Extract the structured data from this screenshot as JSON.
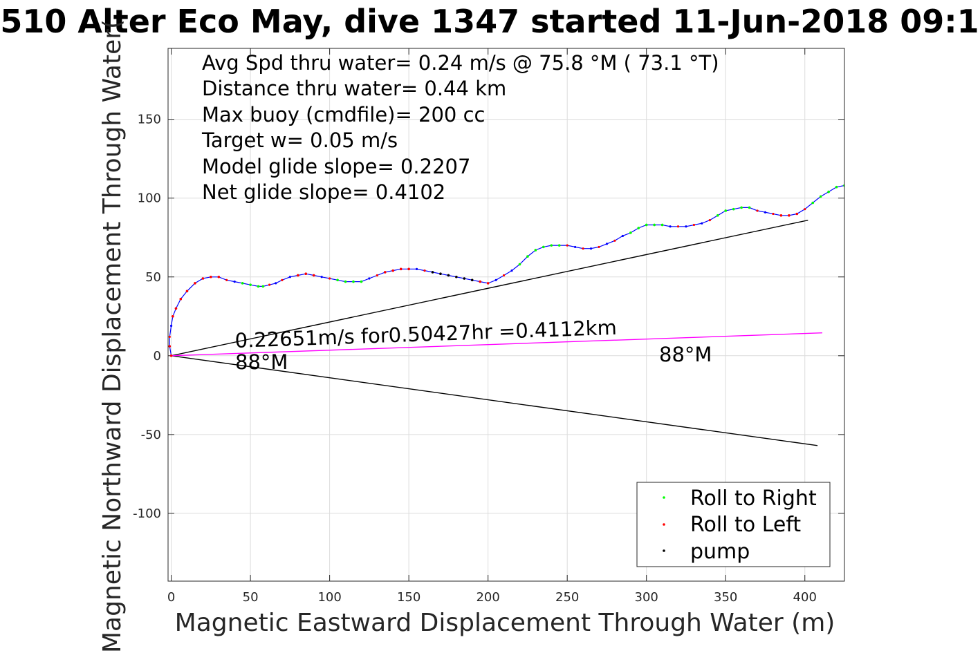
{
  "chart_data": {
    "type": "line",
    "title": "510 Alter Eco May, dive 1347 started 11-Jun-2018 09:1",
    "xlabel": "Magnetic Eastward Displacement Through Water (m)",
    "ylabel": "Magnetic Northward Displacement Through Water(",
    "xlim": [
      -2,
      425
    ],
    "ylim": [
      -143,
      195
    ],
    "grid": true,
    "xticks": [
      0,
      50,
      100,
      150,
      200,
      250,
      300,
      350,
      400
    ],
    "xtick_labels": [
      "0",
      "50",
      "100",
      "150",
      "200",
      "250",
      "300",
      "350",
      "400"
    ],
    "yticks": [
      -100,
      -50,
      0,
      50,
      100,
      150
    ],
    "ytick_labels": [
      "-100",
      "-50",
      "0",
      "50",
      "100",
      "150"
    ],
    "track": {
      "color": "#0000ff",
      "x": [
        0,
        -1,
        -1,
        0,
        1,
        3,
        6,
        10,
        15,
        20,
        25,
        30,
        35,
        40,
        45,
        50,
        55,
        58,
        62,
        66,
        70,
        75,
        80,
        85,
        90,
        95,
        100,
        105,
        110,
        115,
        120,
        125,
        130,
        135,
        140,
        145,
        150,
        155,
        160,
        165,
        170,
        175,
        180,
        185,
        190,
        195,
        200,
        205,
        210,
        215,
        220,
        225,
        230,
        235,
        240,
        245,
        250,
        255,
        260,
        265,
        270,
        275,
        280,
        285,
        290,
        295,
        300,
        305,
        310,
        315,
        320,
        325,
        330,
        335,
        340,
        345,
        350,
        355,
        360,
        365,
        370,
        375,
        380,
        385,
        390,
        395,
        400,
        405,
        410,
        415,
        420,
        425
      ],
      "y": [
        0,
        6,
        12,
        19,
        25,
        30,
        36,
        41,
        46,
        49,
        50,
        50,
        48,
        47,
        46,
        45,
        44,
        44,
        45,
        46,
        48,
        50,
        51,
        52,
        51,
        50,
        49,
        48,
        47,
        47,
        47,
        49,
        51,
        53,
        54,
        55,
        55,
        55,
        54,
        53,
        52,
        51,
        50,
        49,
        48,
        47,
        46,
        48,
        51,
        54,
        58,
        63,
        67,
        69,
        70,
        70,
        70,
        69,
        68,
        68,
        69,
        71,
        73,
        76,
        78,
        81,
        83,
        83,
        83,
        82,
        82,
        82,
        83,
        84,
        86,
        89,
        92,
        93,
        94,
        94,
        92,
        91,
        90,
        89,
        89,
        90,
        93,
        97,
        101,
        104,
        107,
        108
      ]
    },
    "markers": [
      {
        "name": "Roll to Right",
        "color": "#00ff00",
        "x": [
          45,
          50,
          55,
          58,
          105,
          110,
          115,
          120,
          220,
          225,
          230,
          235,
          240,
          245,
          290,
          295,
          300,
          305,
          310,
          345,
          350,
          355,
          360,
          365,
          405,
          410,
          415,
          420,
          425
        ]
      },
      {
        "name": "Roll to Left",
        "color": "#ff0000",
        "x": [
          -1,
          0,
          1,
          3,
          6,
          10,
          15,
          20,
          25,
          30,
          80,
          85,
          90,
          135,
          140,
          145,
          150,
          195,
          200,
          385,
          390,
          395
        ]
      },
      {
        "name": "pump",
        "color": "#000000",
        "x": [
          165,
          170,
          175,
          180,
          185,
          190
        ]
      }
    ],
    "dot_colors": [
      "#ff0000",
      "#0000ff"
    ],
    "lines": [
      {
        "name": "upper-bound-line",
        "color": "#000000",
        "x": [
          0,
          402
        ],
        "y": [
          0,
          86
        ]
      },
      {
        "name": "lower-bound-line",
        "color": "#000000",
        "x": [
          0,
          408
        ],
        "y": [
          0,
          -57
        ]
      },
      {
        "name": "net-heading-line",
        "color": "#ff00ff",
        "x": [
          0,
          411
        ],
        "y": [
          0,
          14.5
        ]
      }
    ],
    "annotations": {
      "avg_speed": "Avg Spd thru water=  0.24 m/s @  75.8 °M ( 73.1 °T)",
      "distance": "Distance thru water=  0.44 km",
      "max_buoy": "Max buoy (cmdfile)= 200 cc",
      "target_w": "Target w= 0.05 m/s",
      "model_slope": "Model glide slope= 0.2207",
      "net_slope": "Net glide slope= 0.4102",
      "current_text": "0.22651m/s for0.50427hr =0.4112km",
      "heading_left": "88°M",
      "heading_right": "88°M"
    },
    "legend": {
      "position": "bottom-right",
      "items": [
        {
          "label": "Roll to Right",
          "color": "#00ff00"
        },
        {
          "label": "Roll to Left",
          "color": "#ff0000"
        },
        {
          "label": "pump",
          "color": "#000000"
        }
      ]
    }
  }
}
